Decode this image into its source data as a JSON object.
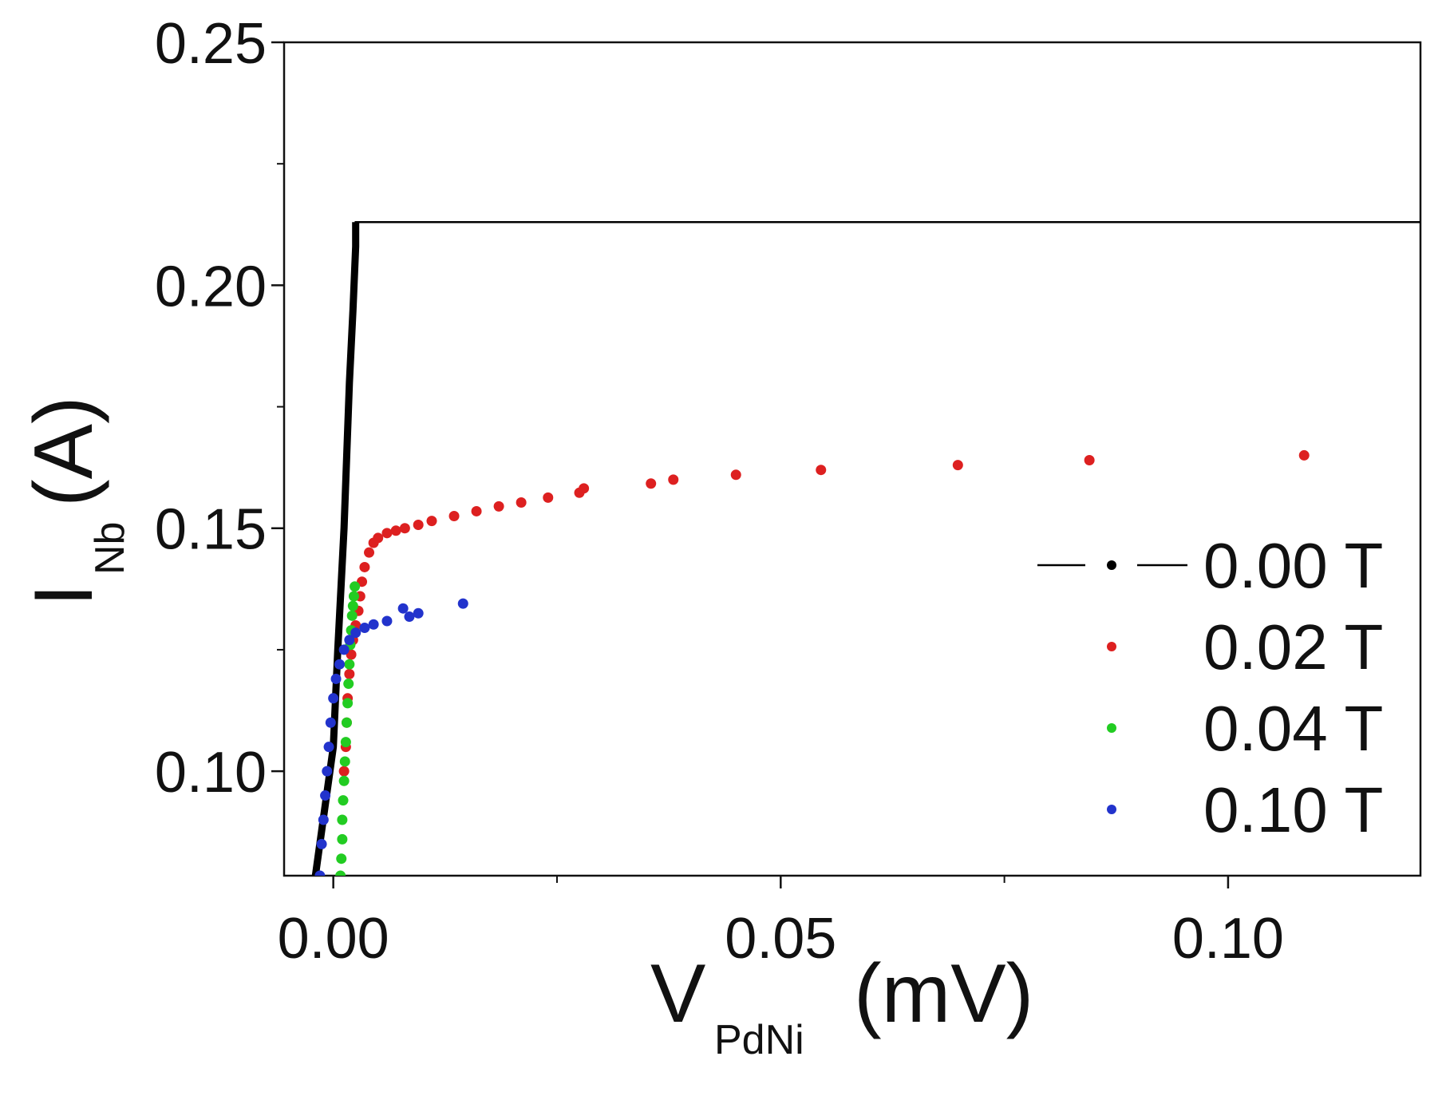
{
  "chart_data": {
    "type": "scatter",
    "title": "",
    "xlabel": {
      "main": "V",
      "sub": "PdNi",
      "unit": "(mV)"
    },
    "ylabel": {
      "main": "I",
      "sub": "Nb",
      "unit": "(A)"
    },
    "xlim": [
      -0.0055,
      0.1215
    ],
    "ylim": [
      0.0785,
      0.25
    ],
    "x_ticks": [
      {
        "value": 0.0,
        "label": "0.00"
      },
      {
        "value": 0.05,
        "label": "0.05"
      },
      {
        "value": 0.1,
        "label": "0.10"
      }
    ],
    "x_minor_ticks": [
      0.025,
      0.075
    ],
    "y_ticks": [
      {
        "value": 0.1,
        "label": "0.10"
      },
      {
        "value": 0.15,
        "label": "0.15"
      },
      {
        "value": 0.2,
        "label": "0.20"
      },
      {
        "value": 0.25,
        "label": "0.25"
      }
    ],
    "y_minor_ticks": [
      0.125,
      0.175,
      0.225
    ],
    "grid": false,
    "legend_position": "right",
    "series": [
      {
        "name": "0.00 T",
        "color": "#000000",
        "style": "line",
        "x": [
          -0.002,
          0.0,
          0.0005,
          0.0012,
          0.0015,
          0.0018,
          0.0022,
          0.0025,
          0.0025,
          0.122
        ],
        "y": [
          0.0785,
          0.105,
          0.125,
          0.15,
          0.165,
          0.18,
          0.195,
          0.208,
          0.213,
          0.213
        ]
      },
      {
        "name": "0.02 T",
        "color": "#dd2020",
        "style": "markers",
        "x": [
          0.0012,
          0.0014,
          0.0015,
          0.0016,
          0.0018,
          0.002,
          0.0022,
          0.0025,
          0.0028,
          0.003,
          0.0032,
          0.0035,
          0.004,
          0.0045,
          0.005,
          0.006,
          0.007,
          0.008,
          0.0095,
          0.011,
          0.0135,
          0.016,
          0.0185,
          0.021,
          0.024,
          0.0275,
          0.028,
          0.0355,
          0.038,
          0.045,
          0.0545,
          0.0698,
          0.0845,
          0.1085
        ],
        "y": [
          0.1,
          0.105,
          0.11,
          0.115,
          0.12,
          0.124,
          0.127,
          0.13,
          0.133,
          0.136,
          0.139,
          0.142,
          0.145,
          0.147,
          0.148,
          0.149,
          0.1495,
          0.15,
          0.1507,
          0.1515,
          0.1525,
          0.1535,
          0.1545,
          0.1553,
          0.1563,
          0.1573,
          0.1582,
          0.1592,
          0.16,
          0.161,
          0.162,
          0.163,
          0.164,
          0.165
        ]
      },
      {
        "name": "0.04 T",
        "color": "#22cc22",
        "style": "markers",
        "x": [
          0.0008,
          0.0009,
          0.001,
          0.001,
          0.0011,
          0.0012,
          0.0013,
          0.0014,
          0.0015,
          0.0016,
          0.0017,
          0.0018,
          0.0019,
          0.002,
          0.0021,
          0.0022,
          0.0023,
          0.0024
        ],
        "y": [
          0.0785,
          0.082,
          0.086,
          0.09,
          0.094,
          0.098,
          0.102,
          0.106,
          0.11,
          0.114,
          0.118,
          0.122,
          0.126,
          0.129,
          0.132,
          0.134,
          0.136,
          0.138
        ]
      },
      {
        "name": "0.10 T",
        "color": "#2233cc",
        "style": "markers",
        "x": [
          -0.0015,
          -0.0013,
          -0.0011,
          -0.0009,
          -0.0007,
          -0.0005,
          -0.0003,
          0.0,
          0.0003,
          0.0007,
          0.0012,
          0.0018,
          0.0025,
          0.0035,
          0.0045,
          0.006,
          0.0078,
          0.0085,
          0.0095,
          0.0145
        ],
        "y": [
          0.0785,
          0.085,
          0.09,
          0.095,
          0.1,
          0.105,
          0.11,
          0.115,
          0.119,
          0.122,
          0.125,
          0.127,
          0.1285,
          0.1295,
          0.1302,
          0.1309,
          0.1335,
          0.1318,
          0.1325,
          0.1345
        ]
      }
    ]
  }
}
